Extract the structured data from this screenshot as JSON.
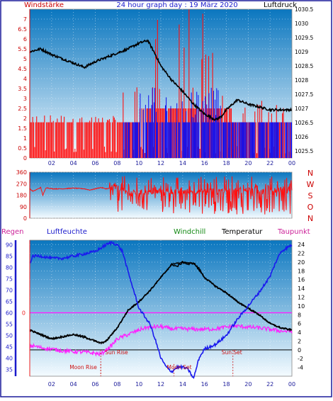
{
  "header": {
    "left_label": "Windstärke",
    "title": "24 hour graph day : 19 März 2020",
    "right_label": "Luftdruck"
  },
  "legend": {
    "regen": "Regen",
    "luftfeuchte": "Luftfeuchte",
    "windchill": "Windchill",
    "temperatur": "Temperatur",
    "taupunkt": "Taupunkt"
  },
  "colors": {
    "panel_top": "#0a76bf",
    "panel_bottom": "#f4fbff",
    "wind_bar": "#ff1010",
    "gust_bar": "#1010ee",
    "pressure": "#000000",
    "direction": "#ff1010",
    "humidity": "#1a1aee",
    "temperature": "#000000",
    "dewpoint": "#ff20ff",
    "rain_axis": "#ee2222",
    "hum_axis": "#1a1acc",
    "windchill_label": "#118811",
    "rain_line": "#ff20ff",
    "sun_label": "#cc1111",
    "frame": "#1a1a9a"
  },
  "markers": {
    "sun_rise": "Sun Rise",
    "sun_set": "Sun Set",
    "moon_rise": "Moon Rise",
    "moon_set": "Moon Set"
  },
  "chart_data": [
    {
      "type": "bar",
      "id": "wind-pressure",
      "x_ticks": [
        "02",
        "04",
        "06",
        "08",
        "10",
        "12",
        "14",
        "16",
        "18",
        "20",
        "22",
        "00"
      ],
      "left_axis": {
        "ticks": [
          "0",
          "0.5",
          "1",
          "1.5",
          "2",
          "2.5",
          "3",
          "3.5",
          "4",
          "4.5",
          "5",
          "5.5",
          "6",
          "6.5",
          "7"
        ],
        "ylim": [
          0,
          7.5
        ]
      },
      "right_axis": {
        "ticks": [
          "1025.5",
          "1026",
          "1026.5",
          "1027",
          "1027.5",
          "1028",
          "1028.5",
          "1029",
          "1029.5",
          "1030",
          "1030.5"
        ],
        "ylim": [
          1025.25,
          1030.5
        ]
      },
      "pressure": {
        "x": [
          0,
          1,
          2,
          3,
          4,
          5,
          6,
          7,
          8,
          9,
          10,
          10.8,
          11.5,
          12,
          13,
          14,
          15,
          16,
          17,
          17.5,
          18,
          19,
          20,
          21,
          22,
          23,
          24
        ],
        "y": [
          1029.0,
          1029.1,
          1028.9,
          1028.75,
          1028.6,
          1028.45,
          1028.65,
          1028.8,
          1028.95,
          1029.1,
          1029.3,
          1029.4,
          1028.9,
          1028.5,
          1028.0,
          1027.6,
          1027.15,
          1026.8,
          1026.6,
          1026.7,
          1026.95,
          1027.3,
          1027.15,
          1027.05,
          1026.95,
          1026.95,
          1026.95
        ]
      },
      "wind_segments": [
        {
          "from": 0,
          "to": 8.5,
          "base": 1.8,
          "peak": 1.8
        },
        {
          "from": 8.5,
          "to": 10.0,
          "base": 1.8,
          "peak": 3.6
        },
        {
          "from": 10.0,
          "to": 18.5,
          "base": 2.5,
          "peak": 5.5
        },
        {
          "from": 18.5,
          "to": 24,
          "base": 1.8,
          "peak": 2.5
        }
      ],
      "gust_segments": [
        {
          "from": 8.5,
          "to": 18.0,
          "level": 1.8,
          "peak": 3.6
        },
        {
          "from": 18.0,
          "to": 21.0,
          "level": 1.8,
          "peak": 1.8
        },
        {
          "from": 21.0,
          "to": 24,
          "level": 1.8,
          "peak": 1.8
        }
      ]
    },
    {
      "type": "line",
      "id": "wind-direction",
      "left_axis": {
        "ticks": [
          "0",
          "90",
          "180",
          "270",
          "360"
        ],
        "ylim": [
          0,
          360
        ]
      },
      "right_letters": [
        "N",
        "W",
        "S",
        "O",
        "N"
      ],
      "direction": {
        "x": [
          0,
          0.3,
          1,
          1.2,
          1.5,
          2,
          3,
          4,
          5,
          5.5,
          6,
          6.5,
          7,
          7.5,
          8,
          8.5,
          9,
          24
        ],
        "y": [
          230,
          210,
          240,
          180,
          240,
          230,
          230,
          235,
          230,
          220,
          230,
          240,
          230,
          235,
          240,
          230,
          200,
          230
        ],
        "scatter_from": 7.3,
        "scatter_to": 24,
        "scatter_min": 30,
        "scatter_max": 330
      }
    },
    {
      "type": "line",
      "id": "temp-humidity",
      "x_ticks": [
        "02",
        "04",
        "06",
        "08",
        "10",
        "12",
        "14",
        "16",
        "18",
        "20",
        "22",
        "00"
      ],
      "left_axis": {
        "ticks": [
          "35",
          "40",
          "45",
          "50",
          "55",
          "60",
          "65",
          "70",
          "75",
          "80",
          "85",
          "90"
        ],
        "ylim": [
          32,
          92
        ],
        "label": "Luftfeuchte"
      },
      "rain_axis": {
        "ticks": [
          "0"
        ],
        "value": 0
      },
      "right_axis": {
        "ticks": [
          "-4",
          "-2",
          "0",
          "2",
          "4",
          "6",
          "8",
          "10",
          "12",
          "14",
          "16",
          "18",
          "20",
          "22",
          "24"
        ],
        "ylim": [
          -6,
          25
        ]
      },
      "humidity": {
        "x": [
          0,
          0.3,
          1,
          2,
          3,
          4,
          5,
          6,
          7,
          7.5,
          8,
          8.5,
          9,
          10,
          11,
          11.5,
          12,
          12.5,
          13,
          13.5,
          14,
          14.5,
          15,
          15.5,
          16,
          17,
          18,
          19,
          20,
          21,
          22,
          22.5,
          23,
          24
        ],
        "y": [
          82,
          85,
          85,
          84,
          84,
          85,
          86,
          87,
          90,
          91,
          90,
          87,
          78,
          62,
          55,
          48,
          40,
          36,
          34,
          36,
          36,
          35,
          31,
          40,
          44,
          46,
          50,
          57,
          63,
          69,
          76,
          82,
          87,
          90
        ]
      },
      "temperature": {
        "x": [
          0,
          1,
          2,
          3,
          4,
          5,
          6,
          6.5,
          7,
          7.5,
          8,
          8.5,
          9,
          10,
          11,
          12,
          12.5,
          13,
          13.5,
          14,
          14.5,
          15,
          15.5,
          16,
          17,
          18,
          19,
          20,
          21,
          22,
          23,
          24
        ],
        "y": [
          4.5,
          3.5,
          2.5,
          3.0,
          3.5,
          3.0,
          2.0,
          1.5,
          2.0,
          3.5,
          5.0,
          7.0,
          9.0,
          11.0,
          13.5,
          16.5,
          18.0,
          19.5,
          19.0,
          20.0,
          19.5,
          19.8,
          18.5,
          16.5,
          14.5,
          13.0,
          11.0,
          9.5,
          8.0,
          6.0,
          5.0,
          4.5
        ]
      },
      "dewpoint": {
        "x": [
          0,
          0.5,
          1,
          2,
          3,
          4,
          5,
          6,
          6.5,
          7,
          7.5,
          8,
          8.5,
          9,
          10,
          10.5,
          11,
          12,
          13,
          14,
          15,
          16,
          17,
          18,
          19,
          20,
          21,
          22,
          23,
          24
        ],
        "y": [
          1.0,
          0.8,
          0.5,
          0.2,
          -0.2,
          -0.4,
          -0.5,
          -0.8,
          -1.0,
          0.0,
          1.0,
          2.5,
          3.0,
          3.5,
          4.5,
          5.0,
          5.2,
          5.3,
          4.8,
          4.8,
          4.7,
          4.7,
          4.8,
          5.2,
          5.4,
          5.2,
          5.0,
          4.7,
          4.3,
          4.2
        ]
      },
      "windchill": {
        "x": [
          0,
          2,
          4,
          6,
          6.5,
          7,
          8,
          9,
          10,
          11,
          12,
          13,
          14,
          15,
          16,
          17,
          18,
          19,
          20,
          21,
          22,
          23,
          24
        ],
        "y": [
          4.5,
          2.5,
          3.5,
          2.0,
          1.5,
          2.0,
          5.0,
          9.0,
          11.0,
          13.5,
          16.5,
          19.5,
          20.0,
          19.8,
          16.5,
          14.5,
          13.0,
          11.0,
          9.5,
          8.0,
          6.0,
          5.0,
          4.5
        ]
      },
      "horizon_temp": 0,
      "rain_level": 60,
      "sun_rise_hour": 6.5,
      "sun_set_hour": 18.6,
      "moon_rise_hour": 6.5,
      "moon_set_hour": 13.2
    }
  ]
}
